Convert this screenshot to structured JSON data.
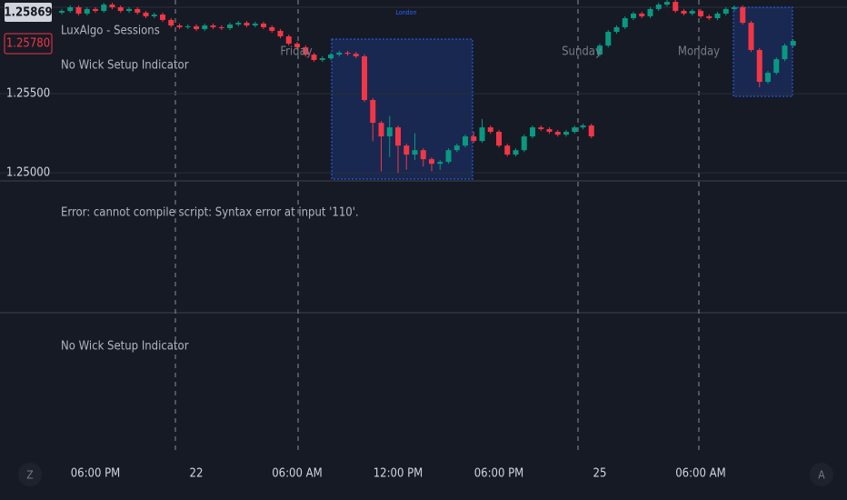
{
  "chart_data": {
    "type": "candlestick",
    "up_color": "#089981",
    "down_color": "#f23645",
    "grid": true,
    "ylim": [
      1.24943,
      1.26092
    ],
    "yticks": [
      {
        "value": 1.255,
        "label": "1.25500"
      },
      {
        "value": 1.25,
        "label": "1.25000"
      }
    ],
    "xlim": [
      0,
      87
    ],
    "xticks": [
      {
        "value": 4,
        "label": "06:00 PM"
      },
      {
        "value": 16,
        "label": "22"
      },
      {
        "value": 28,
        "label": "06:00 AM"
      },
      {
        "value": 40,
        "label": "12:00 PM"
      },
      {
        "value": 52,
        "label": "06:00 PM"
      },
      {
        "value": 64,
        "label": "25"
      },
      {
        "value": 76,
        "label": "06:00 AM"
      }
    ],
    "open": [
      1.26012,
      1.26023,
      1.26046,
      1.26006,
      1.26035,
      1.26023,
      1.26063,
      1.26046,
      1.26023,
      1.26035,
      1.26012,
      1.25989,
      1.26,
      1.25966,
      1.25931,
      1.2592,
      1.25926,
      1.25908,
      1.25931,
      1.2592,
      1.25914,
      1.25937,
      1.25948,
      1.25931,
      1.25943,
      1.2592,
      1.25897,
      1.25862,
      1.25816,
      1.25793,
      1.25747,
      1.25713,
      1.25724,
      1.25747,
      1.25759,
      1.25752,
      1.25736,
      1.2546,
      1.25316,
      1.2523,
      1.25287,
      1.25172,
      1.25115,
      1.25143,
      1.25086,
      1.25057,
      1.25069,
      1.25143,
      1.25172,
      1.2523,
      1.25201,
      1.25287,
      1.25259,
      1.25172,
      1.25115,
      1.25143,
      1.2523,
      1.25287,
      1.25276,
      1.25259,
      1.25241,
      1.25259,
      1.25287,
      1.25299,
      1.25747,
      1.25804,
      1.25891,
      1.2592,
      1.25977,
      1.26006,
      1.25989,
      1.26035,
      1.26063,
      1.2608,
      1.26023,
      1.26006,
      1.26023,
      1.25989,
      1.25977,
      1.26006,
      1.26035,
      1.26046,
      1.25948,
      1.25776,
      1.25575,
      1.25632,
      1.25718,
      1.25804
    ],
    "high": [
      1.26035,
      1.26058,
      1.26058,
      1.26047,
      1.26047,
      1.26075,
      1.26075,
      1.26058,
      1.26047,
      1.26047,
      1.26024,
      1.26012,
      1.26012,
      1.25978,
      1.25943,
      1.25938,
      1.25938,
      1.25943,
      1.25943,
      1.25932,
      1.25949,
      1.2596,
      1.2596,
      1.25955,
      1.25955,
      1.25932,
      1.25909,
      1.25874,
      1.25828,
      1.25805,
      1.25759,
      1.25736,
      1.25759,
      1.25771,
      1.25771,
      1.25764,
      1.25748,
      1.25472,
      1.25328,
      1.2536,
      1.25299,
      1.25184,
      1.2525,
      1.25155,
      1.25098,
      1.25081,
      1.25155,
      1.25184,
      1.25242,
      1.2526,
      1.2534,
      1.25299,
      1.25271,
      1.25184,
      1.25155,
      1.25242,
      1.25299,
      1.25299,
      1.25288,
      1.25271,
      1.25271,
      1.25299,
      1.25311,
      1.25311,
      1.25816,
      1.25903,
      1.25932,
      1.25989,
      1.26018,
      1.26018,
      1.26047,
      1.26075,
      1.26092,
      1.26092,
      1.26035,
      1.26035,
      1.26035,
      1.26001,
      1.26018,
      1.26047,
      1.26058,
      1.26058,
      1.2596,
      1.25788,
      1.25644,
      1.2573,
      1.25816,
      1.25845
    ],
    "low": [
      1.26,
      1.26011,
      1.25994,
      1.25994,
      1.26011,
      1.26011,
      1.26034,
      1.26011,
      1.26011,
      1.26,
      1.25977,
      1.25977,
      1.25954,
      1.25919,
      1.25908,
      1.25908,
      1.25896,
      1.25896,
      1.25908,
      1.25902,
      1.25902,
      1.25925,
      1.25919,
      1.25919,
      1.25908,
      1.25885,
      1.2585,
      1.25804,
      1.25781,
      1.25735,
      1.25701,
      1.25701,
      1.25712,
      1.25735,
      1.2574,
      1.25724,
      1.25448,
      1.252,
      1.2501,
      1.251,
      1.25,
      1.2502,
      1.2508,
      1.2504,
      1.2501,
      1.2502,
      1.25057,
      1.25131,
      1.2516,
      1.25189,
      1.25189,
      1.25247,
      1.2516,
      1.25103,
      1.25103,
      1.25131,
      1.25218,
      1.25264,
      1.25247,
      1.25229,
      1.25229,
      1.25247,
      1.25275,
      1.25218,
      1.25735,
      1.25792,
      1.25879,
      1.25908,
      1.25965,
      1.25977,
      1.25977,
      1.26023,
      1.26051,
      1.26011,
      1.25994,
      1.25994,
      1.25977,
      1.25965,
      1.25965,
      1.25994,
      1.26023,
      1.25936,
      1.25764,
      1.2554,
      1.25563,
      1.2562,
      1.25706,
      1.25792
    ],
    "close": [
      1.26023,
      1.26046,
      1.26006,
      1.26035,
      1.26023,
      1.26063,
      1.26046,
      1.26023,
      1.26035,
      1.26012,
      1.25989,
      1.26,
      1.25966,
      1.25931,
      1.2592,
      1.25926,
      1.25908,
      1.25931,
      1.2592,
      1.25914,
      1.25937,
      1.25948,
      1.25931,
      1.25943,
      1.2592,
      1.25897,
      1.25862,
      1.25816,
      1.25793,
      1.25747,
      1.25713,
      1.25724,
      1.25747,
      1.25759,
      1.25752,
      1.25736,
      1.2546,
      1.25316,
      1.2523,
      1.25287,
      1.25172,
      1.25115,
      1.25143,
      1.25086,
      1.25057,
      1.25069,
      1.25143,
      1.25172,
      1.2523,
      1.25201,
      1.25287,
      1.25259,
      1.25172,
      1.25115,
      1.25143,
      1.2523,
      1.25287,
      1.25276,
      1.25259,
      1.25241,
      1.25259,
      1.25287,
      1.25299,
      1.2523,
      1.25804,
      1.25891,
      1.2592,
      1.25977,
      1.26006,
      1.25989,
      1.26035,
      1.26063,
      1.2608,
      1.26023,
      1.26006,
      1.26023,
      1.25989,
      1.25977,
      1.26006,
      1.26035,
      1.26046,
      1.25948,
      1.25776,
      1.25575,
      1.25632,
      1.25718,
      1.25804,
      1.25833
    ]
  },
  "overlay": {
    "price_badges": [
      "1.25869",
      "1.25780"
    ],
    "indicators": [
      "LuxAlgo - Sessions",
      "No Wick Setup Indicator"
    ],
    "session_label": "London",
    "day_labels": [
      "Friday",
      "Sunday",
      "Monday"
    ],
    "error_message": "Error: cannot compile script: Syntax error at input '110'.",
    "lower_pane_indicator": "No Wick Setup Indicator",
    "buttons": [
      "Z",
      "A"
    ]
  }
}
